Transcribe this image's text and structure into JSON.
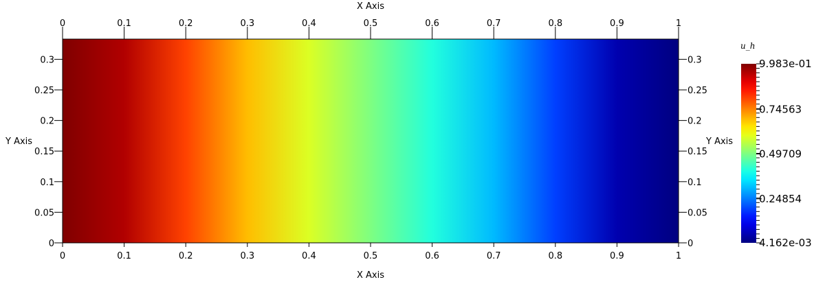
{
  "chart_data": {
    "type": "heatmap",
    "title": "",
    "field": "u_h",
    "description_field": "u_h",
    "x_axis": {
      "label": "X Axis",
      "range": [
        0,
        1
      ],
      "ticks": [
        0,
        0.1,
        0.2,
        0.3,
        0.4,
        0.5,
        0.6,
        0.7,
        0.8,
        0.9,
        1
      ],
      "tick_labels": [
        "0",
        "0.1",
        "0.2",
        "0.3",
        "0.4",
        "0.5",
        "0.6",
        "0.7",
        "0.8",
        "0.9",
        "1"
      ]
    },
    "y_axis": {
      "label": "Y Axis",
      "range": [
        0,
        0.333
      ],
      "ticks": [
        0,
        0.05,
        0.1,
        0.15,
        0.2,
        0.25,
        0.3
      ],
      "tick_labels": [
        "0",
        "0.05",
        "0.1",
        "0.15",
        "0.2",
        "0.25",
        "0.3"
      ]
    },
    "colorbar": {
      "title": "u_h",
      "min": 0.004162,
      "max": 0.9983,
      "labels": [
        {
          "value": 0.9983,
          "text": "9.983e-01"
        },
        {
          "value": 0.74563,
          "text": "0.74563"
        },
        {
          "value": 0.49709,
          "text": "0.49709"
        },
        {
          "value": 0.24854,
          "text": "0.24854"
        },
        {
          "value": 0.004162,
          "text": "4.162e-03"
        }
      ],
      "colormap": "jet"
    },
    "field_profile": {
      "x": [
        0,
        0.1,
        0.2,
        0.3,
        0.4,
        0.5,
        0.6,
        0.7,
        0.8,
        0.9,
        1
      ],
      "value": [
        0.9983,
        0.95,
        0.81,
        0.69,
        0.59,
        0.5,
        0.41,
        0.31,
        0.19,
        0.05,
        0.004162
      ]
    },
    "grid": false,
    "legend": "colorbar right"
  }
}
